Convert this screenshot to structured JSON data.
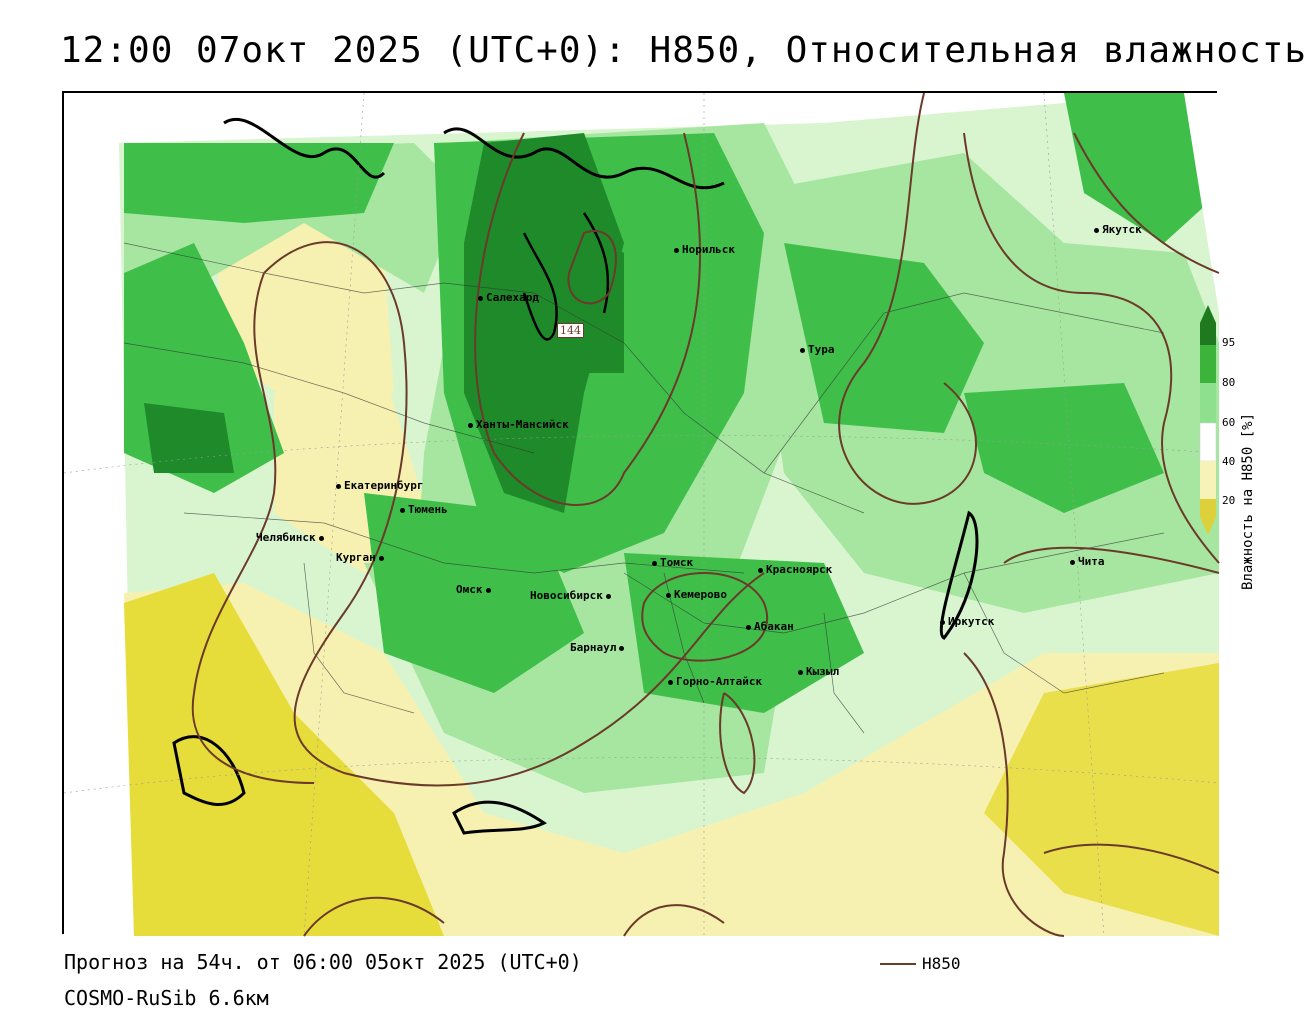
{
  "header": {
    "title": "12:00 07окт 2025 (UTC+0): H850, Относительная влажность"
  },
  "map": {
    "contour_label": "144",
    "cities": [
      {
        "name": "Норильск"
      },
      {
        "name": "Якутск"
      },
      {
        "name": "Салехард"
      },
      {
        "name": "Тура"
      },
      {
        "name": "Ханты-Мансийск"
      },
      {
        "name": "Екатеринбург"
      },
      {
        "name": "Тюмень"
      },
      {
        "name": "Челябинск"
      },
      {
        "name": "Курган"
      },
      {
        "name": "Омск"
      },
      {
        "name": "Новосибирск"
      },
      {
        "name": "Томск"
      },
      {
        "name": "Кемерово"
      },
      {
        "name": "Красноярск"
      },
      {
        "name": "Абакан"
      },
      {
        "name": "Барнаул"
      },
      {
        "name": "Горно-Алтайск"
      },
      {
        "name": "Кызыл"
      },
      {
        "name": "Иркутск"
      },
      {
        "name": "Чита"
      }
    ]
  },
  "legend": {
    "title": "Влажность на H850 [%]",
    "ticks": [
      "95",
      "80",
      "60",
      "40",
      "20"
    ],
    "colors": [
      "#1f7a1f",
      "#3cb43c",
      "#8ee08e",
      "#d8f5d0",
      "#ffffff",
      "#f7f3b8",
      "#f0e87a",
      "#dcd13a"
    ]
  },
  "footer": {
    "forecast": "Прогноз на 54ч. от 06:00 05окт 2025 (UTC+0)",
    "model": "COSMO-RuSib 6.6км",
    "contour_legend": "H850"
  },
  "colors": {
    "contour": "#6b3a2a",
    "dark_green": "#1f8a2a",
    "green": "#3fbf4a",
    "light_green": "#a6e6a0",
    "pale_green": "#d8f5d0",
    "yellow_light": "#f6f1b0",
    "yellow": "#e6dc3a"
  }
}
